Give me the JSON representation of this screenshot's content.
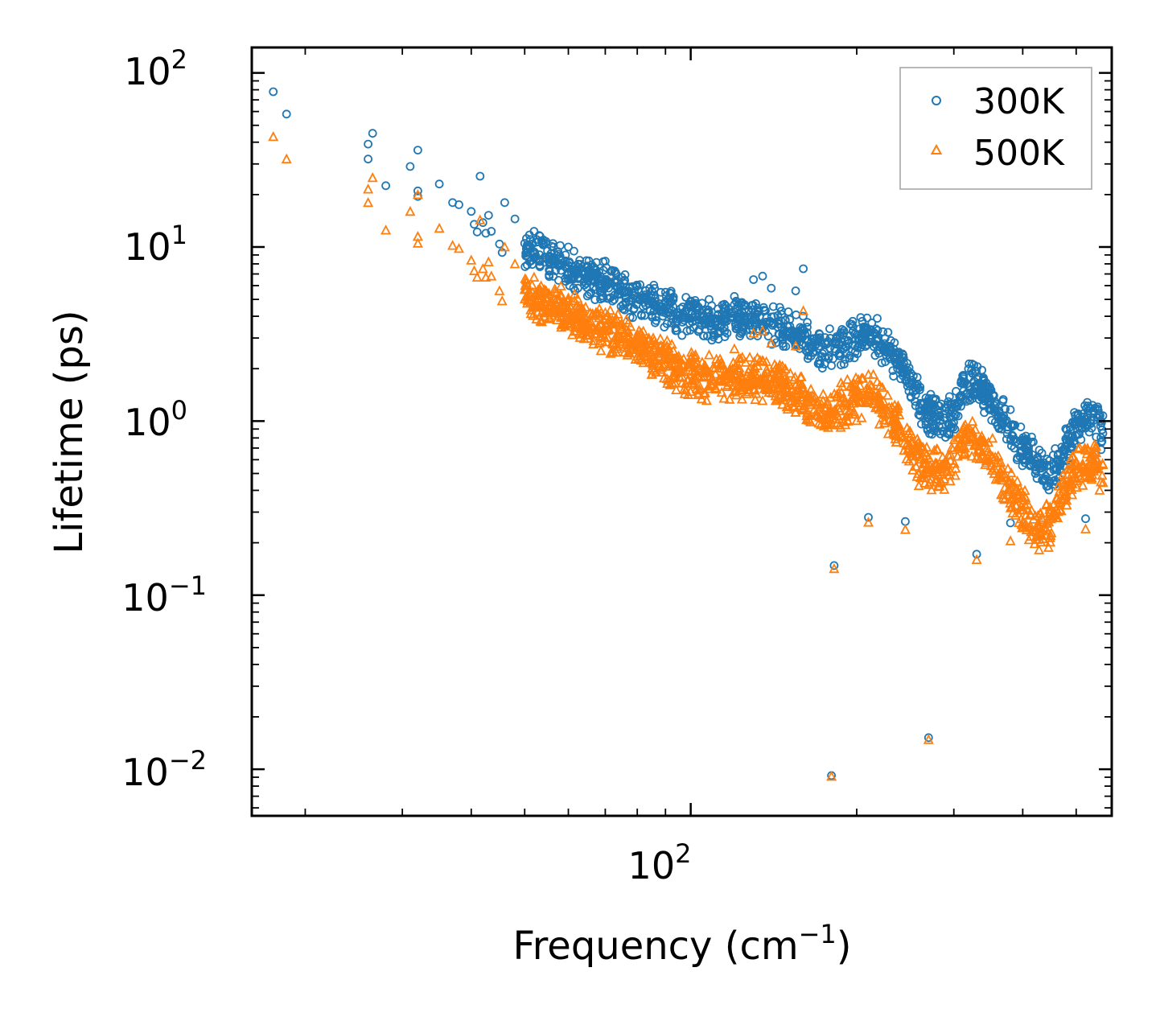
{
  "chart_data": {
    "type": "scatter",
    "title": "",
    "xlabel": "Frequency (cm",
    "xlabel_superscript": "−1",
    "xlabel_suffix": ")",
    "ylabel": "Lifetime (ps)",
    "xscale": "log",
    "yscale": "log",
    "xlim": [
      16,
      580
    ],
    "ylim": [
      0.0054,
      140
    ],
    "x_tick_labels": [
      {
        "value": 100,
        "base": "10",
        "exp": "2"
      }
    ],
    "y_tick_labels": [
      {
        "value": 100,
        "base": "10",
        "exp": "2"
      },
      {
        "value": 10,
        "base": "10",
        "exp": "1"
      },
      {
        "value": 1,
        "base": "10",
        "exp": "0"
      },
      {
        "value": 0.1,
        "base": "10",
        "exp": "−1"
      },
      {
        "value": 0.01,
        "base": "10",
        "exp": "−2"
      }
    ],
    "legend": {
      "position": "top-right",
      "entries": [
        {
          "label": "300K",
          "marker": "circle",
          "color": "#1f77b4"
        },
        {
          "label": "500K",
          "marker": "triangle",
          "color": "#ff7f0e"
        }
      ]
    },
    "series": [
      {
        "name": "300K",
        "marker": "circle",
        "color": "#1f77b4",
        "outliers": [
          [
            17.5,
            78
          ],
          [
            18.5,
            58
          ],
          [
            26,
            32
          ],
          [
            26,
            39
          ],
          [
            26.5,
            45
          ],
          [
            28,
            22.5
          ],
          [
            31,
            29
          ],
          [
            32,
            36
          ],
          [
            32,
            21
          ],
          [
            32,
            19.5
          ],
          [
            35,
            23
          ],
          [
            37,
            18
          ],
          [
            38,
            17.5
          ],
          [
            40,
            16
          ],
          [
            40.5,
            13.5
          ],
          [
            41,
            12.2
          ],
          [
            41.5,
            25.5
          ],
          [
            42,
            13.8
          ],
          [
            42.5,
            12
          ],
          [
            43,
            15.2
          ],
          [
            43.5,
            12.3
          ],
          [
            45,
            10.4
          ],
          [
            45.5,
            9.3
          ],
          [
            46,
            18
          ],
          [
            48,
            14.5
          ],
          [
            50,
            10.5
          ],
          [
            52,
            12.3
          ],
          [
            55,
            9.5
          ],
          [
            58,
            10.2
          ],
          [
            60,
            10
          ],
          [
            63,
            7.5
          ],
          [
            65,
            6.6
          ],
          [
            70,
            8.3
          ],
          [
            75,
            6.7
          ],
          [
            80,
            6
          ],
          [
            85,
            5.6
          ],
          [
            90,
            5.5
          ],
          [
            100,
            4.9
          ],
          [
            108,
            5
          ],
          [
            120,
            5.2
          ],
          [
            130,
            6.5
          ],
          [
            135,
            6.8
          ],
          [
            140,
            5.8
          ],
          [
            155,
            5.6
          ],
          [
            160,
            7.5
          ],
          [
            145,
            4.5
          ],
          [
            182,
            0.148
          ],
          [
            180,
            0.0092
          ],
          [
            210,
            0.28
          ],
          [
            245,
            0.265
          ],
          [
            270,
            0.0152
          ],
          [
            330,
            0.172
          ],
          [
            380,
            0.26
          ],
          [
            520,
            0.275
          ]
        ],
        "trend": [
          [
            50,
            10.2
          ],
          [
            60,
            7.6
          ],
          [
            70,
            6.1
          ],
          [
            80,
            5.0
          ],
          [
            90,
            4.4
          ],
          [
            100,
            3.9
          ],
          [
            110,
            3.8
          ],
          [
            120,
            3.9
          ],
          [
            130,
            3.9
          ],
          [
            140,
            3.6
          ],
          [
            150,
            3.3
          ],
          [
            160,
            3.0
          ],
          [
            170,
            2.7
          ],
          [
            180,
            2.6
          ],
          [
            190,
            2.7
          ],
          [
            200,
            3.0
          ],
          [
            210,
            3.2
          ],
          [
            220,
            2.9
          ],
          [
            230,
            2.5
          ],
          [
            240,
            2.1
          ],
          [
            250,
            1.7
          ],
          [
            260,
            1.3
          ],
          [
            270,
            1.1
          ],
          [
            285,
            1.0
          ],
          [
            300,
            1.1
          ],
          [
            310,
            1.5
          ],
          [
            320,
            1.7
          ],
          [
            335,
            1.6
          ],
          [
            350,
            1.3
          ],
          [
            370,
            1.0
          ],
          [
            390,
            0.8
          ],
          [
            410,
            0.65
          ],
          [
            430,
            0.55
          ],
          [
            450,
            0.5
          ],
          [
            465,
            0.55
          ],
          [
            480,
            0.75
          ],
          [
            500,
            0.9
          ],
          [
            520,
            1.0
          ],
          [
            540,
            1.05
          ],
          [
            560,
            0.85
          ]
        ],
        "spread": 1.35
      },
      {
        "name": "500K",
        "marker": "triangle",
        "color": "#ff7f0e",
        "outliers": [
          [
            17.5,
            43
          ],
          [
            18.5,
            32
          ],
          [
            26,
            18
          ],
          [
            26,
            21.5
          ],
          [
            26.5,
            25
          ],
          [
            28,
            12.5
          ],
          [
            31,
            16
          ],
          [
            32,
            20
          ],
          [
            32,
            11.5
          ],
          [
            32,
            10.5
          ],
          [
            35,
            12.8
          ],
          [
            37,
            10.2
          ],
          [
            38,
            9.8
          ],
          [
            40,
            8.4
          ],
          [
            40.5,
            7.3
          ],
          [
            41,
            6.7
          ],
          [
            41.5,
            14.3
          ],
          [
            42,
            7.5
          ],
          [
            42.5,
            6.7
          ],
          [
            43,
            8.2
          ],
          [
            43.5,
            6.8
          ],
          [
            45,
            5.6
          ],
          [
            45.5,
            4.9
          ],
          [
            46,
            10
          ],
          [
            48,
            8
          ],
          [
            50,
            5.7
          ],
          [
            52,
            6.7
          ],
          [
            55,
            5
          ],
          [
            58,
            5.3
          ],
          [
            60,
            5.1
          ],
          [
            63,
            3.9
          ],
          [
            65,
            3.6
          ],
          [
            70,
            4.2
          ],
          [
            75,
            3.4
          ],
          [
            80,
            3
          ],
          [
            85,
            2.8
          ],
          [
            90,
            2.6
          ],
          [
            100,
            2.3
          ],
          [
            108,
            2.4
          ],
          [
            120,
            2.6
          ],
          [
            130,
            3.2
          ],
          [
            135,
            3.3
          ],
          [
            140,
            2.8
          ],
          [
            155,
            2.7
          ],
          [
            160,
            4.3
          ],
          [
            145,
            2.1
          ],
          [
            182,
            0.142
          ],
          [
            180,
            0.0091
          ],
          [
            210,
            0.262
          ],
          [
            245,
            0.238
          ],
          [
            270,
            0.0148
          ],
          [
            330,
            0.16
          ],
          [
            380,
            0.205
          ],
          [
            520,
            0.24
          ]
        ],
        "trend": [
          [
            50,
            5.4
          ],
          [
            60,
            4.1
          ],
          [
            70,
            3.3
          ],
          [
            80,
            2.7
          ],
          [
            90,
            2.2
          ],
          [
            100,
            1.8
          ],
          [
            110,
            1.7
          ],
          [
            120,
            1.75
          ],
          [
            130,
            1.8
          ],
          [
            140,
            1.7
          ],
          [
            150,
            1.5
          ],
          [
            160,
            1.35
          ],
          [
            170,
            1.2
          ],
          [
            180,
            1.15
          ],
          [
            190,
            1.25
          ],
          [
            200,
            1.4
          ],
          [
            210,
            1.5
          ],
          [
            220,
            1.3
          ],
          [
            230,
            1.05
          ],
          [
            240,
            0.85
          ],
          [
            250,
            0.7
          ],
          [
            260,
            0.58
          ],
          [
            270,
            0.52
          ],
          [
            285,
            0.52
          ],
          [
            300,
            0.58
          ],
          [
            310,
            0.75
          ],
          [
            320,
            0.85
          ],
          [
            335,
            0.75
          ],
          [
            350,
            0.6
          ],
          [
            370,
            0.45
          ],
          [
            390,
            0.35
          ],
          [
            410,
            0.28
          ],
          [
            430,
            0.24
          ],
          [
            450,
            0.26
          ],
          [
            465,
            0.33
          ],
          [
            480,
            0.45
          ],
          [
            500,
            0.52
          ],
          [
            520,
            0.55
          ],
          [
            540,
            0.58
          ],
          [
            560,
            0.45
          ]
        ],
        "spread": 1.4
      }
    ]
  }
}
